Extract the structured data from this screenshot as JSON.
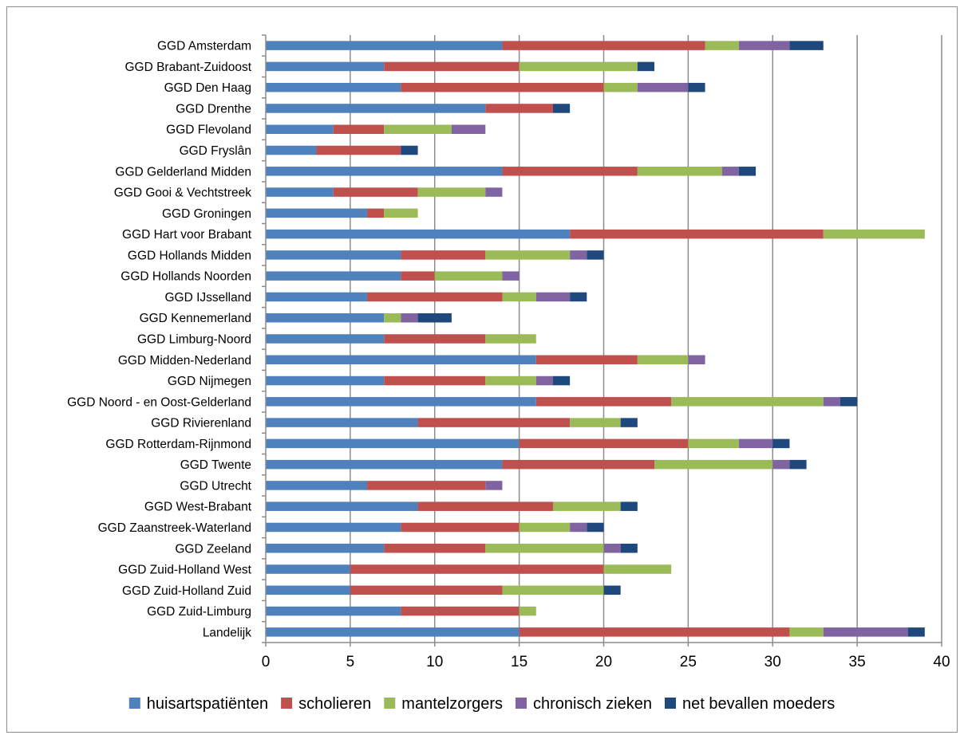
{
  "chart_data": {
    "type": "bar",
    "orientation": "horizontal",
    "stacked": true,
    "title": "",
    "xlabel": "",
    "ylabel": "",
    "xlim": [
      0,
      40
    ],
    "x_ticks": [
      0,
      5,
      10,
      15,
      20,
      25,
      30,
      35,
      40
    ],
    "grid": true,
    "legend_position": "bottom",
    "categories": [
      "GGD Amsterdam",
      "GGD Brabant-Zuidoost",
      "GGD Den Haag",
      "GGD Drenthe",
      "GGD Flevoland",
      "GGD Fryslân",
      "GGD Gelderland Midden",
      "GGD Gooi & Vechtstreek",
      "GGD Groningen",
      "GGD Hart voor Brabant",
      "GGD Hollands Midden",
      "GGD Hollands Noorden",
      "GGD IJsselland",
      "GGD Kennemerland",
      "GGD Limburg-Noord",
      "GGD Midden-Nederland",
      "GGD Nijmegen",
      "GGD Noord - en Oost-Gelderland",
      "GGD Rivierenland",
      "GGD Rotterdam-Rijnmond",
      "GGD Twente",
      "GGD Utrecht",
      "GGD West-Brabant",
      "GGD Zaanstreek-Waterland",
      "GGD Zeeland",
      "GGD Zuid-Holland West",
      "GGD Zuid-Holland Zuid",
      "GGD Zuid-Limburg",
      "Landelijk"
    ],
    "series": [
      {
        "name": "huisartspatiënten",
        "color": "#4f81bd",
        "values": [
          14,
          7,
          8,
          13,
          4,
          3,
          14,
          4,
          6,
          18,
          8,
          8,
          6,
          7,
          7,
          16,
          7,
          16,
          9,
          15,
          14,
          6,
          9,
          8,
          7,
          5,
          5,
          8,
          15
        ]
      },
      {
        "name": "scholieren",
        "color": "#c0504d",
        "values": [
          12,
          8,
          12,
          4,
          3,
          5,
          8,
          5,
          1,
          15,
          5,
          2,
          8,
          0,
          6,
          6,
          6,
          8,
          9,
          10,
          9,
          7,
          8,
          7,
          6,
          15,
          9,
          7,
          16
        ]
      },
      {
        "name": "mantelzorgers",
        "color": "#9bbb59",
        "values": [
          2,
          7,
          2,
          0,
          4,
          0,
          5,
          4,
          2,
          6,
          5,
          4,
          2,
          1,
          3,
          3,
          3,
          9,
          3,
          3,
          7,
          0,
          4,
          3,
          7,
          4,
          6,
          1,
          2
        ]
      },
      {
        "name": "chronisch zieken",
        "color": "#8064a2",
        "values": [
          3,
          0,
          3,
          0,
          2,
          0,
          1,
          1,
          0,
          0,
          1,
          1,
          2,
          1,
          0,
          1,
          1,
          1,
          0,
          2,
          1,
          1,
          0,
          1,
          1,
          0,
          0,
          0,
          5
        ]
      },
      {
        "name": "net bevallen moeders",
        "color": "#1f497d",
        "values": [
          2,
          1,
          1,
          1,
          0,
          1,
          1,
          0,
          0,
          0,
          1,
          0,
          1,
          2,
          0,
          0,
          1,
          1,
          1,
          1,
          1,
          0,
          1,
          1,
          1,
          0,
          1,
          0,
          1
        ]
      }
    ]
  }
}
